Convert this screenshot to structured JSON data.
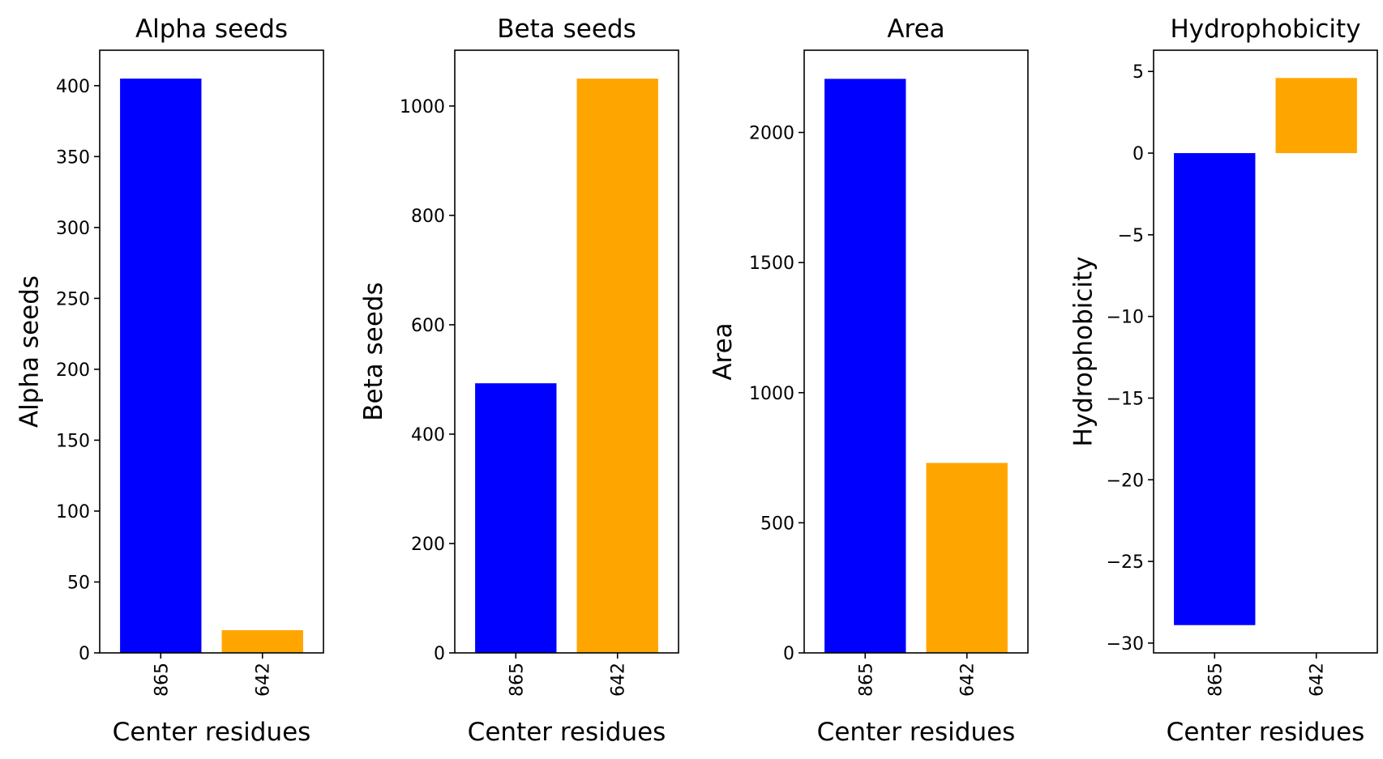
{
  "colors": {
    "bar_primary": "#0000ff",
    "bar_secondary": "#ffa500"
  },
  "chart_data": [
    {
      "type": "bar",
      "title": "Alpha seeds",
      "xlabel": "Center residues",
      "ylabel": "Alpha seeds",
      "categories": [
        "865",
        "642"
      ],
      "values": [
        405,
        16
      ],
      "ylim": [
        0,
        425
      ],
      "yticks": [
        0,
        50,
        100,
        150,
        200,
        250,
        300,
        350,
        400
      ],
      "ytick_labels": [
        "0",
        "50",
        "100",
        "150",
        "200",
        "250",
        "300",
        "350",
        "400"
      ]
    },
    {
      "type": "bar",
      "title": "Beta seeds",
      "xlabel": "Center residues",
      "ylabel": "Beta seeds",
      "categories": [
        "865",
        "642"
      ],
      "values": [
        493,
        1050
      ],
      "ylim": [
        0,
        1102
      ],
      "yticks": [
        0,
        200,
        400,
        600,
        800,
        1000
      ],
      "ytick_labels": [
        "0",
        "200",
        "400",
        "600",
        "800",
        "1000"
      ]
    },
    {
      "type": "bar",
      "title": "Area",
      "xlabel": "Center residues",
      "ylabel": "Area",
      "categories": [
        "865",
        "642"
      ],
      "values": [
        2206,
        730
      ],
      "ylim": [
        0,
        2316
      ],
      "yticks": [
        0,
        500,
        1000,
        1500,
        2000
      ],
      "ytick_labels": [
        "0",
        "500",
        "1000",
        "1500",
        "2000"
      ]
    },
    {
      "type": "bar",
      "title": "Hydrophobicity",
      "xlabel": "Center residues",
      "ylabel": "Hydrophobicity",
      "categories": [
        "865",
        "642"
      ],
      "values": [
        -28.9,
        4.6
      ],
      "ylim": [
        -30.6,
        6.3
      ],
      "yticks": [
        -30,
        -25,
        -20,
        -15,
        -10,
        -5,
        0,
        5
      ],
      "ytick_labels": [
        "−30",
        "−25",
        "−20",
        "−15",
        "−10",
        "−5",
        "0",
        "5"
      ]
    }
  ]
}
